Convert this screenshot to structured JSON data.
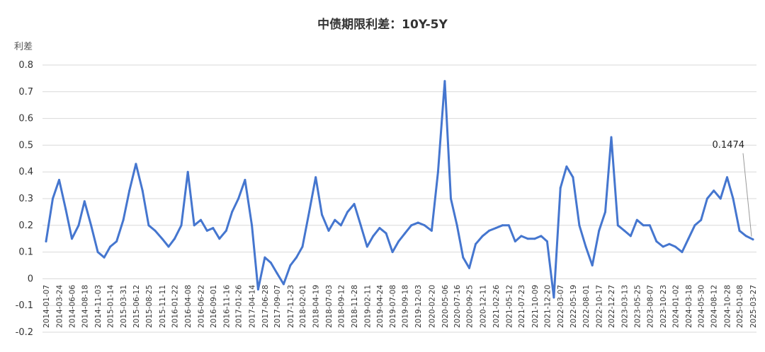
{
  "chart_data": {
    "type": "line",
    "title": "中债期限利差：10Y-5Y",
    "ylabel": "利差",
    "xlabel": "",
    "ylim": [
      -0.2,
      0.8
    ],
    "yticks": [
      "-0.2",
      "-0.1",
      "0",
      "0.1",
      "0.2",
      "0.3",
      "0.4",
      "0.5",
      "0.6",
      "0.7",
      "0.8"
    ],
    "grid": true,
    "line_color": "#4576cf",
    "x_tick_labels": [
      "2014-01-07",
      "2014-03-24",
      "2014-06-06",
      "2014-08-18",
      "2014-11-03",
      "2015-01-14",
      "2015-03-31",
      "2015-06-12",
      "2015-08-25",
      "2015-11-11",
      "2016-01-22",
      "2016-04-08",
      "2016-06-22",
      "2016-09-01",
      "2016-11-16",
      "2017-01-26",
      "2017-04-14",
      "2017-06-28",
      "2017-09-07",
      "2017-11-23",
      "2018-02-01",
      "2018-04-19",
      "2018-07-03",
      "2018-09-12",
      "2018-11-28",
      "2019-02-11",
      "2019-04-24",
      "2019-07-08",
      "2019-09-18",
      "2019-12-03",
      "2020-02-20",
      "2020-05-06",
      "2020-07-16",
      "2020-09-25",
      "2020-12-11",
      "2021-02-26",
      "2021-05-12",
      "2021-07-23",
      "2021-10-09",
      "2021-12-20",
      "2022-03-07",
      "2022-05-19",
      "2022-08-01",
      "2022-10-17",
      "2022-12-27",
      "2023-03-13",
      "2023-05-25",
      "2023-08-07",
      "2023-10-23",
      "2024-01-02",
      "2024-03-18",
      "2024-05-30",
      "2024-08-12",
      "2024-10-28",
      "2025-01-08",
      "2025-03-27"
    ],
    "series": [
      {
        "name": "",
        "x": [
          "2014-01-07",
          "2014-02-15",
          "2014-03-24",
          "2014-05-01",
          "2014-06-06",
          "2014-07-15",
          "2014-08-18",
          "2014-09-25",
          "2014-11-03",
          "2014-12-10",
          "2015-01-14",
          "2015-02-20",
          "2015-03-31",
          "2015-05-05",
          "2015-06-12",
          "2015-07-20",
          "2015-08-25",
          "2015-10-01",
          "2015-11-11",
          "2015-12-18",
          "2016-01-22",
          "2016-03-01",
          "2016-04-08",
          "2016-05-15",
          "2016-06-22",
          "2016-07-28",
          "2016-09-01",
          "2016-10-08",
          "2016-11-16",
          "2016-12-20",
          "2017-01-26",
          "2017-03-05",
          "2017-04-14",
          "2017-05-20",
          "2017-06-28",
          "2017-08-02",
          "2017-09-07",
          "2017-10-15",
          "2017-11-23",
          "2017-12-28",
          "2018-02-01",
          "2018-03-12",
          "2018-04-19",
          "2018-05-25",
          "2018-07-03",
          "2018-08-08",
          "2018-09-12",
          "2018-10-20",
          "2018-11-28",
          "2019-01-05",
          "2019-02-11",
          "2019-03-18",
          "2019-04-24",
          "2019-06-01",
          "2019-07-08",
          "2019-08-12",
          "2019-09-18",
          "2019-10-25",
          "2019-12-03",
          "2020-01-10",
          "2020-02-20",
          "2020-03-28",
          "2020-05-06",
          "2020-06-10",
          "2020-07-16",
          "2020-08-20",
          "2020-09-25",
          "2020-11-01",
          "2020-12-11",
          "2021-01-18",
          "2021-02-26",
          "2021-04-05",
          "2021-05-12",
          "2021-06-18",
          "2021-07-23",
          "2021-08-30",
          "2021-10-09",
          "2021-11-15",
          "2021-12-20",
          "2022-01-28",
          "2022-03-07",
          "2022-04-12",
          "2022-05-19",
          "2022-06-25",
          "2022-08-01",
          "2022-09-08",
          "2022-10-17",
          "2022-11-22",
          "2022-12-27",
          "2023-02-03",
          "2023-03-13",
          "2023-04-18",
          "2023-05-25",
          "2023-07-01",
          "2023-08-07",
          "2023-09-15",
          "2023-10-23",
          "2023-11-28",
          "2024-01-02",
          "2024-02-10",
          "2024-03-18",
          "2024-04-24",
          "2024-05-30",
          "2024-07-05",
          "2024-08-12",
          "2024-09-20",
          "2024-10-28",
          "2024-12-02",
          "2025-01-08",
          "2025-02-15",
          "2025-03-27"
        ],
        "values": [
          0.14,
          0.3,
          0.37,
          0.26,
          0.15,
          0.2,
          0.29,
          0.2,
          0.1,
          0.08,
          0.12,
          0.14,
          0.22,
          0.33,
          0.43,
          0.33,
          0.2,
          0.18,
          0.15,
          0.12,
          0.15,
          0.2,
          0.4,
          0.2,
          0.22,
          0.18,
          0.19,
          0.15,
          0.18,
          0.25,
          0.3,
          0.37,
          0.2,
          -0.04,
          0.08,
          0.06,
          0.02,
          -0.02,
          0.05,
          0.08,
          0.12,
          0.25,
          0.38,
          0.24,
          0.18,
          0.22,
          0.2,
          0.25,
          0.28,
          0.2,
          0.12,
          0.16,
          0.19,
          0.17,
          0.1,
          0.14,
          0.17,
          0.2,
          0.21,
          0.2,
          0.18,
          0.4,
          0.74,
          0.3,
          0.2,
          0.08,
          0.04,
          0.13,
          0.16,
          0.18,
          0.19,
          0.2,
          0.2,
          0.14,
          0.16,
          0.15,
          0.15,
          0.16,
          0.14,
          -0.07,
          0.34,
          0.42,
          0.38,
          0.2,
          0.12,
          0.05,
          0.18,
          0.25,
          0.53,
          0.2,
          0.18,
          0.16,
          0.22,
          0.2,
          0.2,
          0.14,
          0.12,
          0.13,
          0.12,
          0.1,
          0.15,
          0.2,
          0.22,
          0.3,
          0.33,
          0.3,
          0.38,
          0.3,
          0.18,
          0.16,
          0.1474
        ]
      }
    ],
    "annotation": {
      "text": "0.1474",
      "x": "2025-03-27",
      "y": 0.1474
    }
  }
}
